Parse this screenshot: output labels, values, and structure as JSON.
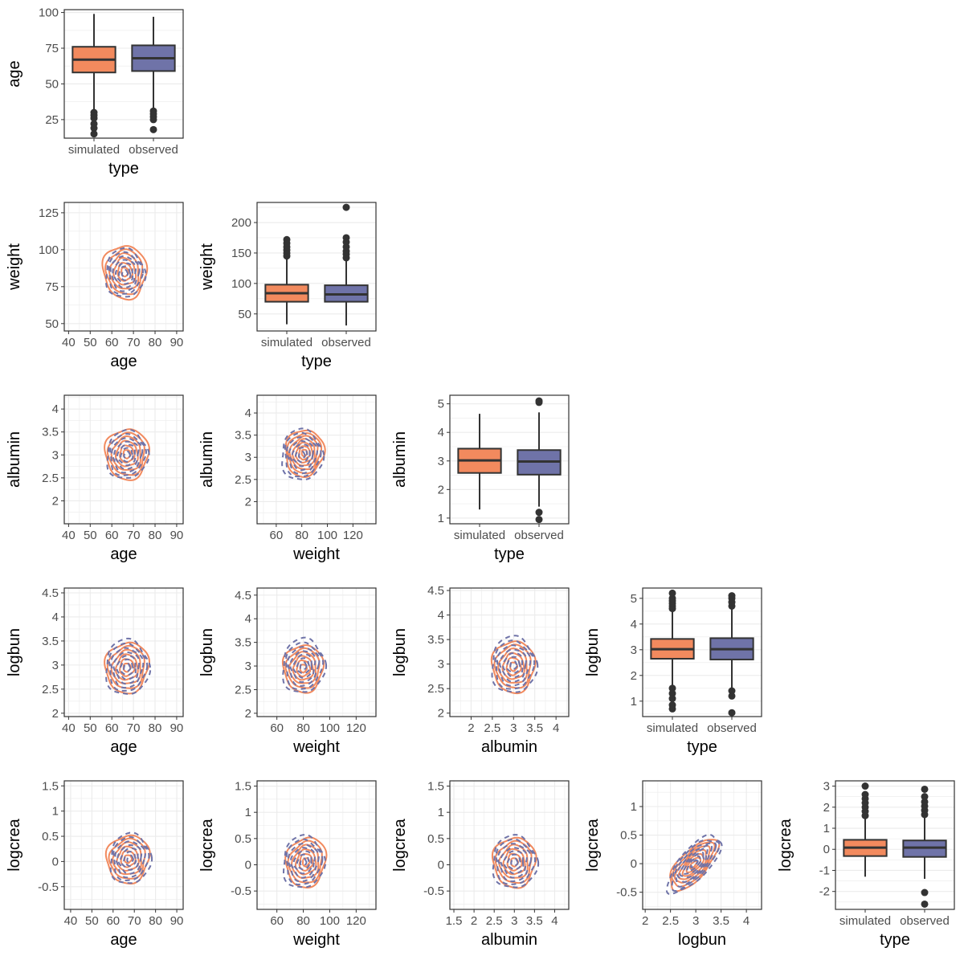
{
  "colors": {
    "simulated": "#F28A5E",
    "observed": "#6F73A8",
    "panel_border": "#333333",
    "grid": "#EBEBEB",
    "box_line": "#333333"
  },
  "types": [
    "simulated",
    "observed"
  ],
  "chart_data": [
    {
      "type": "box",
      "row": 0,
      "col": 0,
      "variable": "age",
      "xlabel": "type",
      "ylabel": "age",
      "categories": [
        "simulated",
        "observed"
      ],
      "ylim": [
        12,
        102
      ],
      "yticks": [
        25,
        50,
        75,
        100
      ],
      "boxes": [
        {
          "name": "simulated",
          "q1": 58,
          "median": 67,
          "q3": 76,
          "whisker_low": 32,
          "whisker_high": 99,
          "outliers": [
            30,
            28,
            26,
            22,
            19,
            15
          ]
        },
        {
          "name": "observed",
          "q1": 59,
          "median": 68,
          "q3": 77,
          "whisker_low": 33,
          "whisker_high": 97,
          "outliers": [
            31,
            29,
            27,
            25,
            18
          ]
        }
      ]
    },
    {
      "type": "box",
      "row": 1,
      "col": 1,
      "variable": "weight",
      "xlabel": "type",
      "ylabel": "weight",
      "categories": [
        "simulated",
        "observed"
      ],
      "ylim": [
        22,
        233
      ],
      "yticks": [
        50,
        100,
        150,
        200
      ],
      "boxes": [
        {
          "name": "simulated",
          "q1": 70,
          "median": 84,
          "q3": 98,
          "whisker_low": 33,
          "whisker_high": 140,
          "outliers": [
            145,
            150,
            155,
            160,
            166,
            172
          ]
        },
        {
          "name": "observed",
          "q1": 70,
          "median": 82,
          "q3": 97,
          "whisker_low": 31,
          "whisker_high": 137,
          "outliers": [
            142,
            148,
            153,
            160,
            168,
            175,
            225
          ]
        }
      ]
    },
    {
      "type": "box",
      "row": 2,
      "col": 2,
      "variable": "albumin",
      "xlabel": "type",
      "ylabel": "albumin",
      "categories": [
        "simulated",
        "observed"
      ],
      "ylim": [
        0.8,
        5.3
      ],
      "yticks": [
        1,
        2,
        3,
        4,
        5
      ],
      "boxes": [
        {
          "name": "simulated",
          "q1": 2.58,
          "median": 3.02,
          "q3": 3.43,
          "whisker_low": 1.3,
          "whisker_high": 4.65,
          "outliers": []
        },
        {
          "name": "observed",
          "q1": 2.52,
          "median": 2.98,
          "q3": 3.38,
          "whisker_low": 1.4,
          "whisker_high": 4.7,
          "outliers": [
            1.2,
            0.95,
            5.05,
            5.1
          ]
        }
      ]
    },
    {
      "type": "box",
      "row": 3,
      "col": 3,
      "variable": "logbun",
      "xlabel": "type",
      "ylabel": "logbun",
      "categories": [
        "simulated",
        "observed"
      ],
      "ylim": [
        0.4,
        5.4
      ],
      "yticks": [
        1,
        2,
        3,
        4,
        5
      ],
      "boxes": [
        {
          "name": "simulated",
          "q1": 2.65,
          "median": 3.02,
          "q3": 3.42,
          "whisker_low": 1.6,
          "whisker_high": 4.5,
          "outliers": [
            1.5,
            1.3,
            1.1,
            0.85,
            0.7,
            4.6,
            4.7,
            4.8,
            4.9,
            5.0,
            5.2
          ]
        },
        {
          "name": "observed",
          "q1": 2.62,
          "median": 3.02,
          "q3": 3.45,
          "whisker_low": 1.5,
          "whisker_high": 4.6,
          "outliers": [
            1.4,
            1.2,
            0.55,
            4.7,
            4.85,
            5.0,
            5.1
          ]
        }
      ]
    },
    {
      "type": "box",
      "row": 4,
      "col": 4,
      "variable": "logcrea",
      "xlabel": "type",
      "ylabel": "logcrea",
      "categories": [
        "simulated",
        "observed"
      ],
      "ylim": [
        -2.85,
        3.25
      ],
      "yticks": [
        -2,
        -1,
        0,
        1,
        2,
        3
      ],
      "boxes": [
        {
          "name": "simulated",
          "q1": -0.32,
          "median": 0.08,
          "q3": 0.45,
          "whisker_low": -1.3,
          "whisker_high": 1.5,
          "outliers": [
            1.6,
            1.8,
            2.0,
            2.2,
            2.4,
            2.6,
            3.0
          ]
        },
        {
          "name": "observed",
          "q1": -0.36,
          "median": 0.08,
          "q3": 0.42,
          "whisker_low": -1.4,
          "whisker_high": 1.55,
          "outliers": [
            -2.05,
            -2.6,
            1.65,
            1.85,
            2.05,
            2.25,
            2.5,
            2.85
          ]
        }
      ]
    },
    {
      "type": "density2d",
      "row": 1,
      "col": 0,
      "xlabel": "age",
      "ylabel": "weight",
      "xlim": [
        38,
        93
      ],
      "ylim": [
        45,
        132
      ],
      "xticks": [
        40,
        50,
        60,
        70,
        80,
        90
      ],
      "yticks": [
        50,
        75,
        100,
        125
      ],
      "series": [
        {
          "name": "simulated",
          "center": [
            66,
            85
          ],
          "spread": [
            20,
            36
          ],
          "rho": -0.05,
          "ncont": 6
        },
        {
          "name": "observed",
          "center": [
            66,
            84
          ],
          "spread": [
            18,
            33
          ],
          "rho": 0.0,
          "ncont": 7
        }
      ]
    },
    {
      "type": "density2d",
      "row": 2,
      "col": 0,
      "xlabel": "age",
      "ylabel": "albumin",
      "xlim": [
        38,
        93
      ],
      "ylim": [
        1.5,
        4.3
      ],
      "xticks": [
        40,
        50,
        60,
        70,
        80,
        90
      ],
      "yticks": [
        2.0,
        2.5,
        3.0,
        3.5,
        4.0
      ],
      "series": [
        {
          "name": "simulated",
          "center": [
            67,
            3.02
          ],
          "spread": [
            20,
            1.1
          ],
          "rho": 0.0,
          "ncont": 6
        },
        {
          "name": "observed",
          "center": [
            67,
            3.0
          ],
          "spread": [
            19,
            1.05
          ],
          "rho": 0.05,
          "ncont": 7
        }
      ]
    },
    {
      "type": "density2d",
      "row": 2,
      "col": 1,
      "xlabel": "weight",
      "ylabel": "albumin",
      "xlim": [
        45,
        138
      ],
      "ylim": [
        1.5,
        4.4
      ],
      "xticks": [
        60,
        80,
        100,
        120
      ],
      "yticks": [
        2.0,
        2.5,
        3.0,
        3.5,
        4.0
      ],
      "series": [
        {
          "name": "simulated",
          "center": [
            82,
            3.1
          ],
          "spread": [
            30,
            1.05
          ],
          "rho": 0.05,
          "ncont": 7
        },
        {
          "name": "observed",
          "center": [
            80,
            3.05
          ],
          "spread": [
            32,
            1.15
          ],
          "rho": 0.0,
          "ncont": 7
        }
      ]
    },
    {
      "type": "density2d",
      "row": 3,
      "col": 0,
      "xlabel": "age",
      "ylabel": "logbun",
      "xlim": [
        38,
        93
      ],
      "ylim": [
        1.93,
        4.6
      ],
      "xticks": [
        40,
        50,
        60,
        70,
        80,
        90
      ],
      "yticks": [
        2.0,
        2.5,
        3.0,
        3.5,
        4.0,
        4.5
      ],
      "series": [
        {
          "name": "simulated",
          "center": [
            67,
            2.95
          ],
          "spread": [
            20,
            1.05
          ],
          "rho": 0.05,
          "ncont": 6
        },
        {
          "name": "observed",
          "center": [
            67,
            2.95
          ],
          "spread": [
            20,
            1.15
          ],
          "rho": 0.0,
          "ncont": 7
        }
      ]
    },
    {
      "type": "density2d",
      "row": 3,
      "col": 1,
      "xlabel": "weight",
      "ylabel": "logbun",
      "xlim": [
        45,
        135
      ],
      "ylim": [
        1.93,
        4.65
      ],
      "xticks": [
        60,
        80,
        100,
        120
      ],
      "yticks": [
        2.0,
        2.5,
        3.0,
        3.5,
        4.0,
        4.5
      ],
      "series": [
        {
          "name": "simulated",
          "center": [
            80,
            2.95
          ],
          "spread": [
            30,
            1.0
          ],
          "rho": 0.0,
          "ncont": 6
        },
        {
          "name": "observed",
          "center": [
            80,
            3.0
          ],
          "spread": [
            32,
            1.15
          ],
          "rho": 0.05,
          "ncont": 7
        }
      ]
    },
    {
      "type": "density2d",
      "row": 3,
      "col": 2,
      "xlabel": "albumin",
      "ylabel": "logbun",
      "xlim": [
        1.5,
        4.3
      ],
      "ylim": [
        1.93,
        4.55
      ],
      "xticks": [
        2.0,
        2.5,
        3.0,
        3.5,
        4.0
      ],
      "yticks": [
        2.0,
        2.5,
        3.0,
        3.5,
        4.0,
        4.5
      ],
      "series": [
        {
          "name": "simulated",
          "center": [
            3.0,
            2.95
          ],
          "spread": [
            1.0,
            1.05
          ],
          "rho": 0.0,
          "ncont": 6
        },
        {
          "name": "observed",
          "center": [
            3.0,
            2.98
          ],
          "spread": [
            1.05,
            1.15
          ],
          "rho": 0.0,
          "ncont": 7
        }
      ]
    },
    {
      "type": "density2d",
      "row": 4,
      "col": 0,
      "xlabel": "age",
      "ylabel": "logcrea",
      "xlim": [
        37,
        93
      ],
      "ylim": [
        -0.95,
        1.6
      ],
      "xticks": [
        40,
        50,
        60,
        70,
        80,
        90
      ],
      "yticks": [
        -0.5,
        0.0,
        0.5,
        1.0,
        1.5
      ],
      "series": [
        {
          "name": "simulated",
          "center": [
            67,
            0.05
          ],
          "spread": [
            20,
            0.95
          ],
          "rho": 0.05,
          "ncont": 6
        },
        {
          "name": "observed",
          "center": [
            68,
            0.05
          ],
          "spread": [
            19,
            1.0
          ],
          "rho": 0.05,
          "ncont": 7
        }
      ]
    },
    {
      "type": "density2d",
      "row": 4,
      "col": 1,
      "xlabel": "weight",
      "ylabel": "logcrea",
      "xlim": [
        45,
        135
      ],
      "ylim": [
        -0.85,
        1.6
      ],
      "xticks": [
        60,
        80,
        100,
        120
      ],
      "yticks": [
        -0.5,
        0.0,
        0.5,
        1.0,
        1.5
      ],
      "series": [
        {
          "name": "simulated",
          "center": [
            82,
            0.05
          ],
          "spread": [
            30,
            0.95
          ],
          "rho": 0.1,
          "ncont": 6
        },
        {
          "name": "observed",
          "center": [
            80,
            0.05
          ],
          "spread": [
            31,
            1.0
          ],
          "rho": 0.05,
          "ncont": 7
        }
      ]
    },
    {
      "type": "density2d",
      "row": 4,
      "col": 2,
      "xlabel": "albumin",
      "ylabel": "logcrea",
      "xlim": [
        1.4,
        4.35
      ],
      "ylim": [
        -0.85,
        1.6
      ],
      "xticks": [
        1.5,
        2.0,
        2.5,
        3.0,
        3.5,
        4.0
      ],
      "yticks": [
        -0.5,
        0.0,
        0.5,
        1.0,
        1.5
      ],
      "series": [
        {
          "name": "simulated",
          "center": [
            3.0,
            0.05
          ],
          "spread": [
            1.05,
            0.95
          ],
          "rho": 0.0,
          "ncont": 6
        },
        {
          "name": "observed",
          "center": [
            3.0,
            0.05
          ],
          "spread": [
            1.1,
            1.0
          ],
          "rho": 0.0,
          "ncont": 7
        }
      ]
    },
    {
      "type": "density2d",
      "row": 4,
      "col": 3,
      "xlabel": "logbun",
      "ylabel": "logcrea",
      "xlim": [
        1.95,
        4.3
      ],
      "ylim": [
        -0.8,
        1.45
      ],
      "xticks": [
        2.0,
        2.5,
        3.0,
        3.5,
        4.0
      ],
      "yticks": [
        -0.5,
        0.0,
        0.5,
        1.0
      ],
      "series": [
        {
          "name": "simulated",
          "center": [
            2.95,
            -0.02
          ],
          "spread": [
            0.95,
            0.9
          ],
          "rho": 0.7,
          "ncont": 7
        },
        {
          "name": "observed",
          "center": [
            2.97,
            0.0
          ],
          "spread": [
            1.05,
            1.0
          ],
          "rho": 0.72,
          "ncont": 8
        }
      ]
    }
  ]
}
